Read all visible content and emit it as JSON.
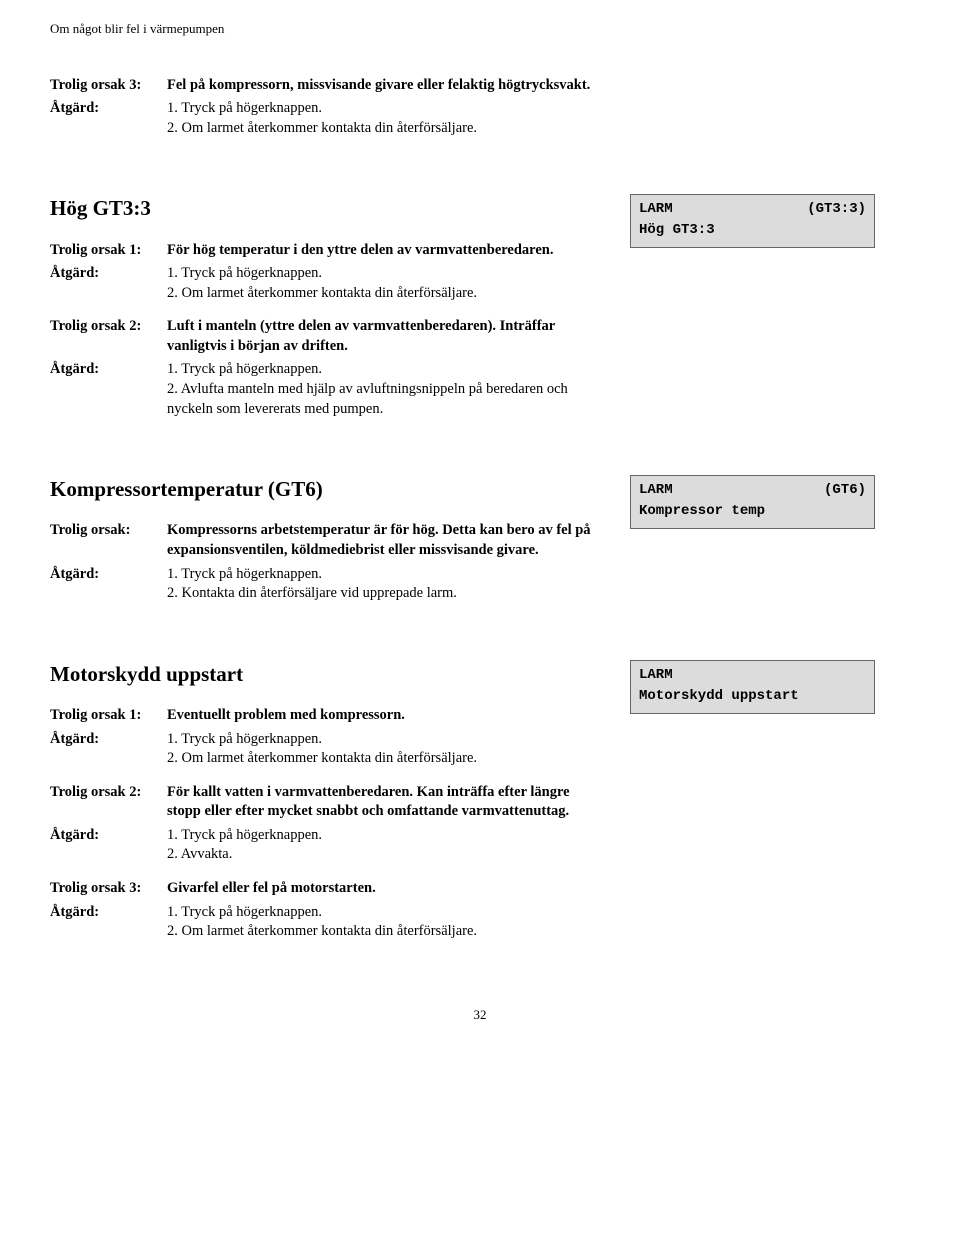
{
  "header": "Om något blir fel i värmepumpen",
  "section1": {
    "entries": [
      {
        "label": "Trolig orsak 3:",
        "cause": "Fel på kompressorn, missvisande givare eller felaktig högtrycksvakt."
      },
      {
        "label": "Åtgärd:",
        "lines": [
          "1.  Tryck på högerknappen.",
          "2.  Om larmet återkommer kontakta din återförsäljare."
        ]
      }
    ]
  },
  "section2": {
    "heading": "Hög GT3:3",
    "larm": {
      "top_left": "LARM",
      "top_right": "(GT3:3)",
      "sub": "Hög GT3:3"
    },
    "blocks": [
      [
        {
          "label": "Trolig orsak 1:",
          "cause": "För hög temperatur i den yttre delen av varmvattenberedaren."
        },
        {
          "label": "Åtgärd:",
          "lines": [
            "1.  Tryck på högerknappen.",
            "2.  Om larmet återkommer kontakta din återförsäljare."
          ]
        }
      ],
      [
        {
          "label": "Trolig orsak 2:",
          "cause": "Luft i manteln (yttre delen av varmvattenberedaren). Inträffar vanligtvis i början av driften."
        },
        {
          "label": "Åtgärd:",
          "lines": [
            "1.  Tryck på högerknappen.",
            "2.  Avlufta manteln med hjälp av avluftningsnippeln på beredaren och nyckeln som levererats med pumpen."
          ]
        }
      ]
    ]
  },
  "section3": {
    "heading": "Kompressortemperatur (GT6)",
    "larm": {
      "top_left": "LARM",
      "top_right": "(GT6)",
      "sub": "Kompressor temp"
    },
    "blocks": [
      [
        {
          "label": "Trolig orsak:",
          "cause": "Kompressorns arbetstemperatur är för hög. Detta kan bero av fel på expansionsventilen, köldmediebrist eller missvisande givare."
        },
        {
          "label": "Åtgärd:",
          "lines": [
            "1.  Tryck på högerknappen.",
            "2.  Kontakta din återförsäljare vid upprepade larm."
          ]
        }
      ]
    ]
  },
  "section4": {
    "heading": "Motorskydd uppstart",
    "larm": {
      "top_left": "LARM",
      "top_right": "",
      "sub": "Motorskydd uppstart"
    },
    "blocks": [
      [
        {
          "label": "Trolig orsak 1:",
          "cause": "Eventuellt problem med kompressorn."
        },
        {
          "label": "Åtgärd:",
          "lines": [
            "1.  Tryck på högerknappen.",
            "2.  Om larmet återkommer kontakta din återförsäljare."
          ]
        }
      ],
      [
        {
          "label": "Trolig orsak 2:",
          "cause": "För kallt vatten i varmvattenberedaren. Kan inträffa efter längre stopp eller efter mycket snabbt och omfattande varmvattenuttag."
        },
        {
          "label": "Åtgärd:",
          "lines": [
            "1.  Tryck på högerknappen.",
            "2.  Avvakta."
          ]
        }
      ],
      [
        {
          "label": "Trolig orsak 3:",
          "cause": "Givarfel eller fel på motorstarten."
        },
        {
          "label": "Åtgärd:",
          "lines": [
            "1.  Tryck på högerknappen.",
            "2.  Om larmet återkommer kontakta din återförsäljare."
          ]
        }
      ]
    ]
  },
  "page_number": "32"
}
